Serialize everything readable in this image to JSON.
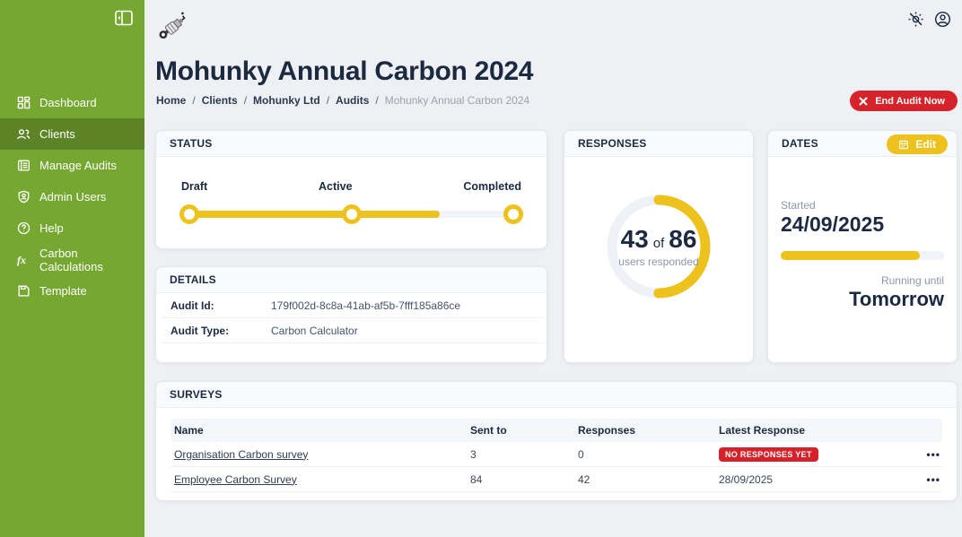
{
  "colors": {
    "sidebar_green": "#75A731",
    "sidebar_active_green": "#5C8326",
    "accent_yellow": "#EEC21C",
    "alert_red": "#D5222B",
    "navy_text": "#1B2A41",
    "page_bg": "#EEF0F3"
  },
  "sidebar": {
    "items": [
      {
        "label": "Dashboard",
        "icon": "dashboard-grid-icon",
        "active": false
      },
      {
        "label": "Clients",
        "icon": "clients-people-icon",
        "active": true
      },
      {
        "label": "Manage Audits",
        "icon": "audits-list-icon",
        "active": false
      },
      {
        "label": "Admin Users",
        "icon": "admin-shield-icon",
        "active": false
      },
      {
        "label": "Help",
        "icon": "help-circle-icon",
        "active": false
      },
      {
        "label": "Carbon Calculations",
        "icon": "function-fx-icon",
        "active": false
      },
      {
        "label": "Template",
        "icon": "template-file-icon",
        "active": false
      }
    ]
  },
  "header": {
    "title": "Mohunky Annual Carbon 2024",
    "separator": "/",
    "breadcrumb": [
      {
        "label": "Home"
      },
      {
        "label": "Clients"
      },
      {
        "label": "Mohunky Ltd"
      },
      {
        "label": "Audits"
      }
    ],
    "breadcrumb_current": "Mohunky Annual Carbon 2024",
    "end_audit_button": "End Audit Now"
  },
  "status_card": {
    "title": "STATUS",
    "steps": [
      "Draft",
      "Active",
      "Completed"
    ],
    "progress_pct": 76,
    "current_step": "Active"
  },
  "responses_card": {
    "title": "RESPONSES",
    "count": "43",
    "of_label": "of",
    "total": "86",
    "subtitle": "users responded",
    "pct": 50
  },
  "dates_card": {
    "title": "DATES",
    "edit_button": "Edit",
    "started_label": "Started",
    "start_date": "24/09/2025",
    "progress_pct": 85,
    "running_label": "Running until",
    "end_date": "Tomorrow"
  },
  "details_card": {
    "title": "DETAILS",
    "rows": [
      {
        "label": "Audit Id:",
        "value": "179f002d-8c8a-41ab-af5b-7fff185a86ce"
      },
      {
        "label": "Audit Type:",
        "value": "Carbon Calculator"
      }
    ]
  },
  "surveys_card": {
    "title": "SURVEYS",
    "columns": [
      "Name",
      "Sent to",
      "Responses",
      "Latest Response"
    ],
    "row_menu_glyph": "•••",
    "rows": [
      {
        "name": "Organisation Carbon survey",
        "sent_to": "3",
        "responses": "0",
        "latest": "NO RESPONSES YET",
        "latest_is_badge": true
      },
      {
        "name": "Employee Carbon Survey",
        "sent_to": "84",
        "responses": "42",
        "latest": "28/09/2025",
        "latest_is_badge": false
      }
    ]
  }
}
